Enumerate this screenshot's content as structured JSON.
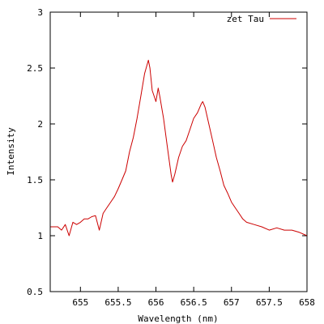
{
  "chart_data": {
    "type": "line",
    "title": "",
    "xlabel": "Wavelength (nm)",
    "ylabel": "Intensity",
    "xlim": [
      654.6,
      658.0
    ],
    "ylim": [
      0.5,
      3.0
    ],
    "xticks": [
      655,
      655.5,
      656,
      656.5,
      657,
      657.5,
      658
    ],
    "xtick_labels": [
      "655",
      "655.5",
      "656",
      "656.5",
      "657",
      "657.5",
      "658"
    ],
    "yticks": [
      0.5,
      1.0,
      1.5,
      2.0,
      2.5,
      3.0
    ],
    "ytick_labels": [
      "0.5",
      "1",
      "1.5",
      "2",
      "2.5",
      "3"
    ],
    "grid": false,
    "legend_position": "top-right",
    "series": [
      {
        "name": "zet Tau",
        "color": "#cc0000",
        "x": [
          654.6,
          654.7,
          654.75,
          654.8,
          654.85,
          654.9,
          654.95,
          655.0,
          655.05,
          655.1,
          655.15,
          655.2,
          655.25,
          655.3,
          655.35,
          655.4,
          655.45,
          655.5,
          655.55,
          655.6,
          655.65,
          655.7,
          655.75,
          655.8,
          655.85,
          655.9,
          655.92,
          655.95,
          656.0,
          656.03,
          656.05,
          656.1,
          656.15,
          656.2,
          656.22,
          656.25,
          656.3,
          656.35,
          656.4,
          656.45,
          656.5,
          656.55,
          656.6,
          656.62,
          656.65,
          656.7,
          656.75,
          656.8,
          656.85,
          656.9,
          656.95,
          657.0,
          657.05,
          657.1,
          657.15,
          657.2,
          657.3,
          657.4,
          657.5,
          657.6,
          657.7,
          657.8,
          657.9,
          658.0
        ],
        "y": [
          1.08,
          1.08,
          1.05,
          1.1,
          1.0,
          1.12,
          1.1,
          1.12,
          1.15,
          1.15,
          1.17,
          1.18,
          1.05,
          1.2,
          1.25,
          1.3,
          1.35,
          1.42,
          1.5,
          1.58,
          1.75,
          1.88,
          2.05,
          2.25,
          2.45,
          2.57,
          2.5,
          2.3,
          2.2,
          2.32,
          2.25,
          2.05,
          1.8,
          1.55,
          1.48,
          1.55,
          1.7,
          1.8,
          1.85,
          1.95,
          2.05,
          2.1,
          2.18,
          2.2,
          2.15,
          2.0,
          1.85,
          1.7,
          1.58,
          1.45,
          1.38,
          1.3,
          1.25,
          1.2,
          1.15,
          1.12,
          1.1,
          1.08,
          1.05,
          1.07,
          1.05,
          1.05,
          1.03,
          1.0
        ]
      }
    ]
  }
}
